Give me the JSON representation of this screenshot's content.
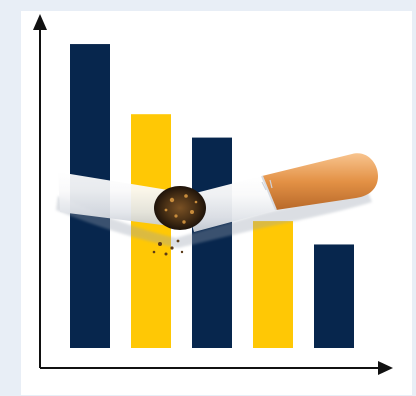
{
  "chart_data": {
    "type": "bar",
    "categories": [
      "",
      "",
      "",
      "",
      ""
    ],
    "values": [
      0.91,
      0.7,
      0.63,
      0.38,
      0.31
    ],
    "ylim": [
      0,
      1
    ],
    "grid": false
  },
  "colors": {
    "page_background": "#e8eef6",
    "frame_background": "#ffffff",
    "navy": "#07264d",
    "yellow": "#ffc805",
    "axis": "#111111",
    "cigarette_paper": "#f6f6f7",
    "filter": "#e79d52",
    "ash": "#4c3216"
  },
  "illustration": {
    "subject": "broken-cigarette-icon"
  }
}
